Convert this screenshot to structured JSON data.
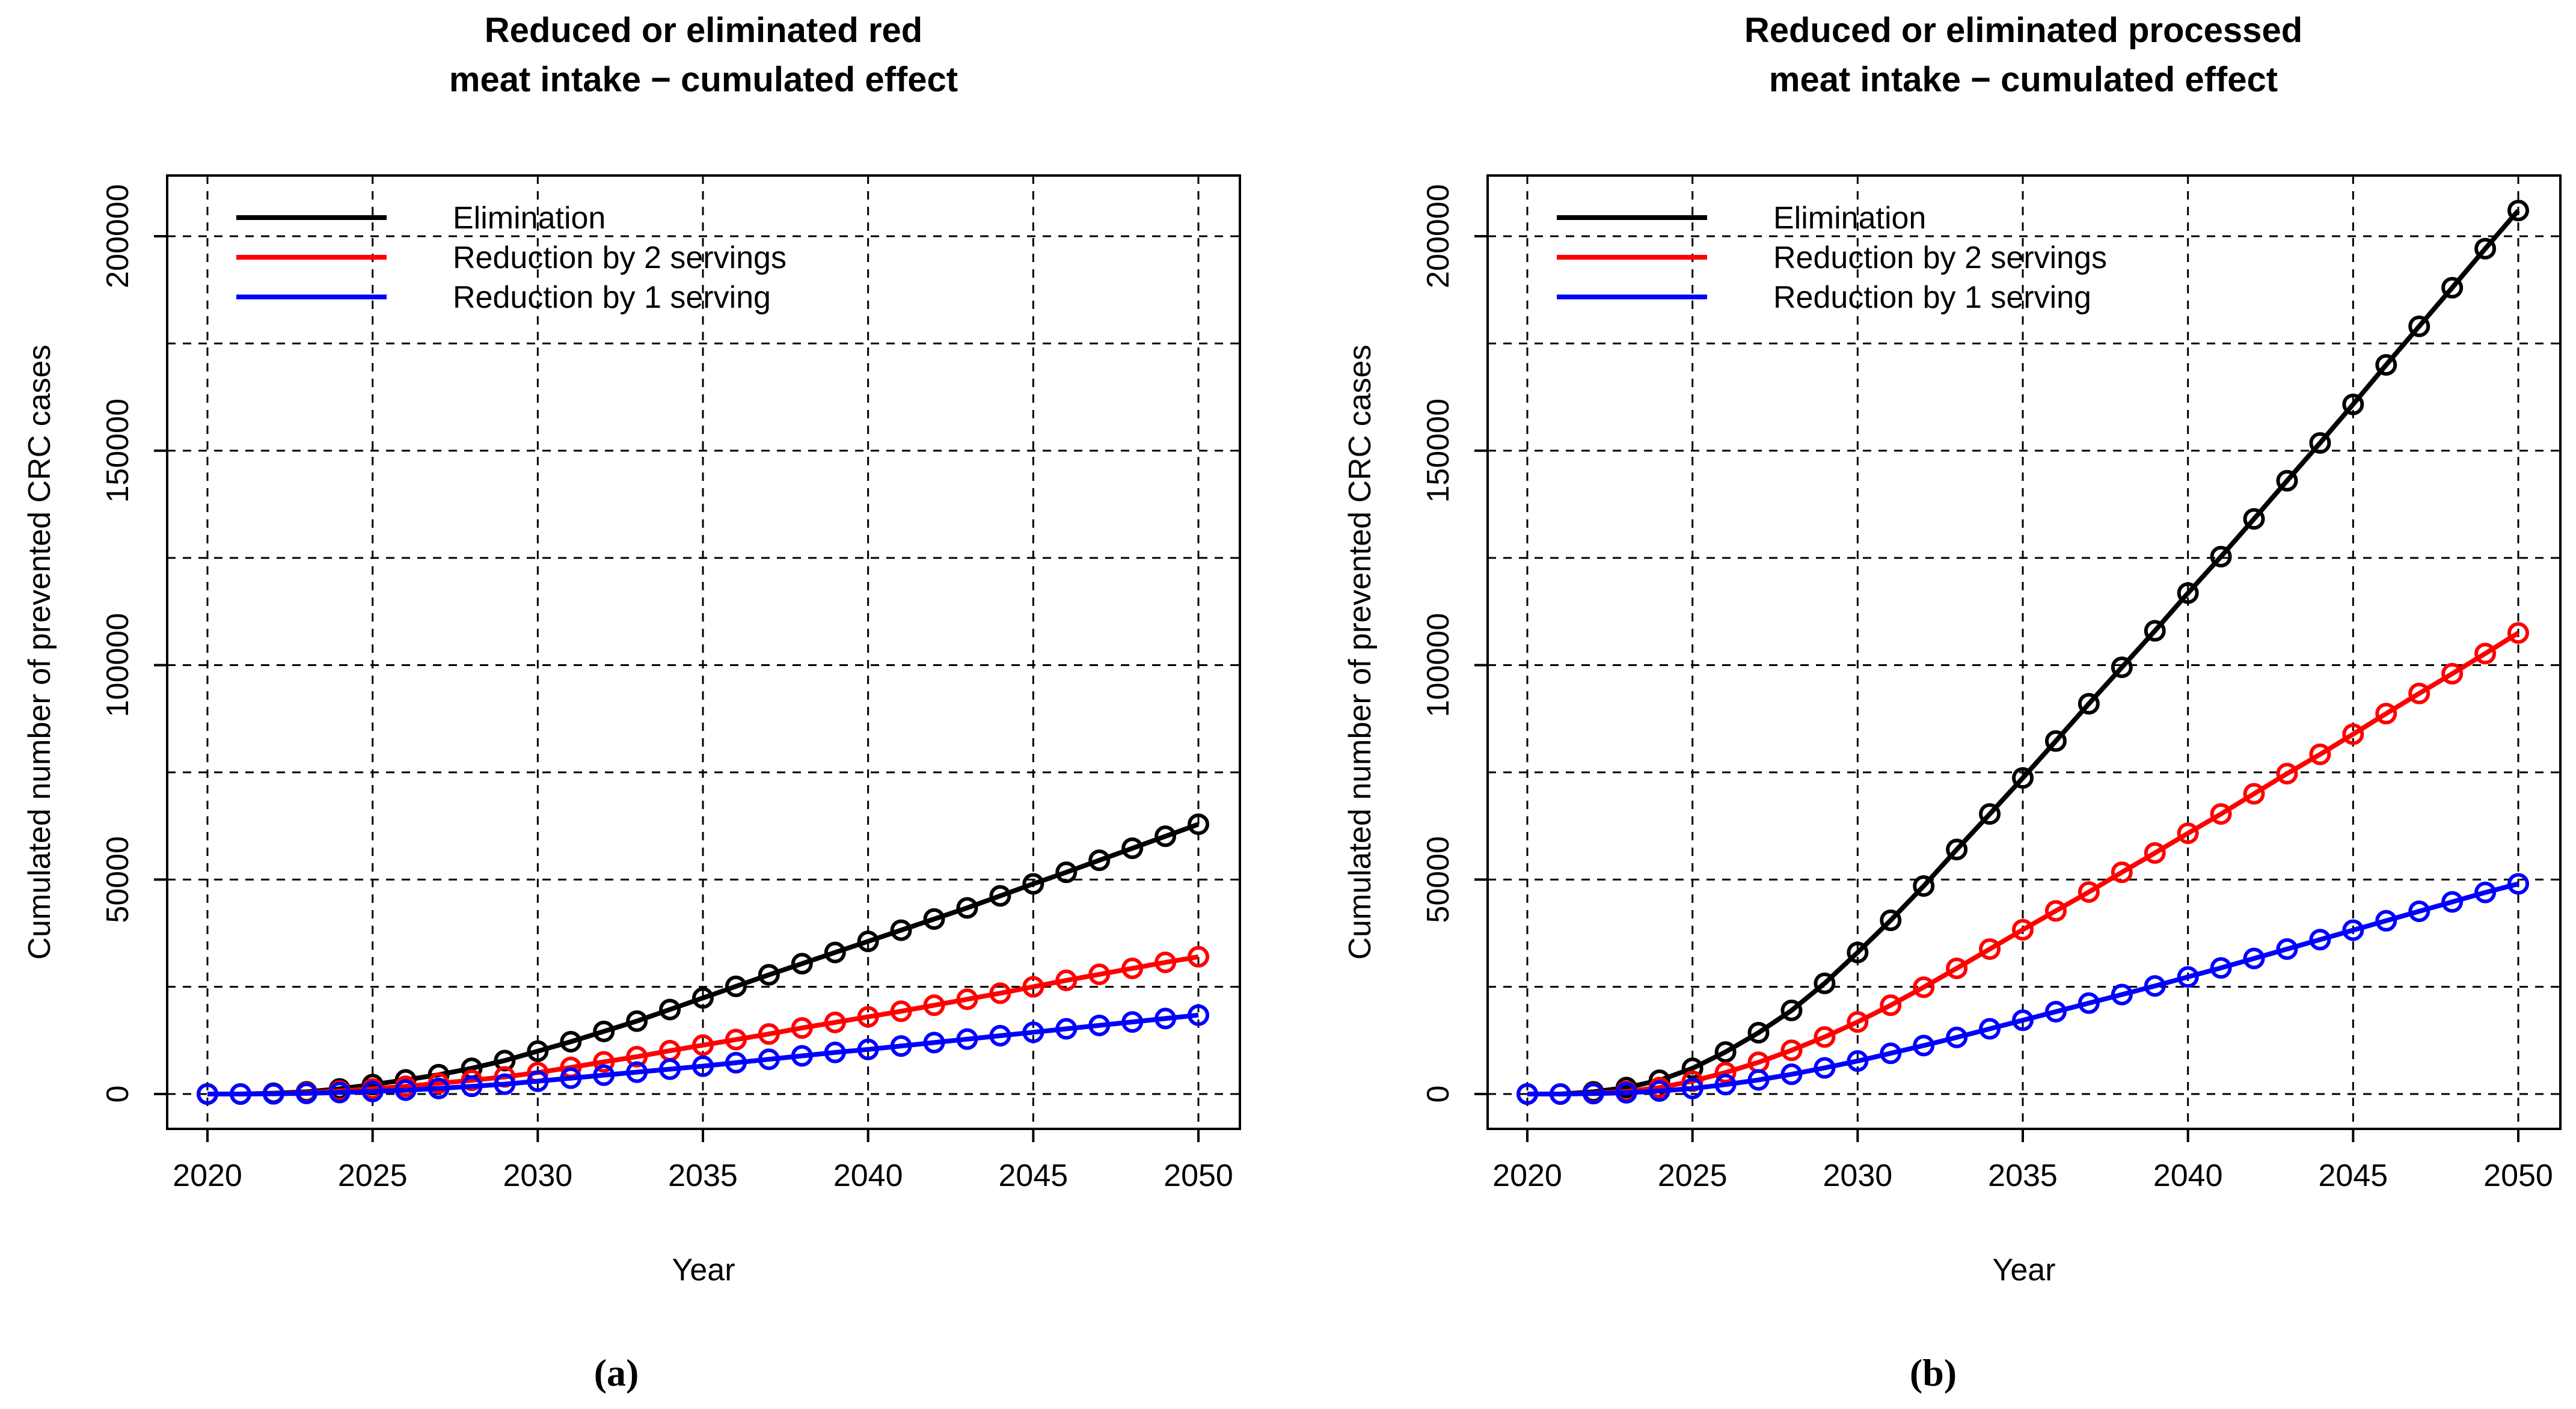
{
  "chart_data": [
    {
      "type": "line",
      "panel_label": "(a)",
      "title_lines": [
        "Reduced or eliminated red",
        "meat intake − cumulated effect"
      ],
      "xlabel": "Year",
      "ylabel": "Cumulated number of prevented CRC cases",
      "xlim": [
        2020,
        2050
      ],
      "ylim": [
        0,
        200000
      ],
      "xticks": [
        2020,
        2025,
        2030,
        2035,
        2040,
        2045,
        2050
      ],
      "yticks": [
        0,
        50000,
        100000,
        150000,
        200000
      ],
      "grid": true,
      "legend_position": "top-left",
      "x": [
        2020,
        2021,
        2022,
        2023,
        2024,
        2025,
        2026,
        2027,
        2028,
        2029,
        2030,
        2031,
        2032,
        2033,
        2034,
        2035,
        2036,
        2037,
        2038,
        2039,
        2040,
        2041,
        2042,
        2043,
        2044,
        2045,
        2046,
        2047,
        2048,
        2049,
        2050
      ],
      "series": [
        {
          "name": "Elimination",
          "color": "#000000",
          "values": [
            0,
            0,
            200,
            500,
            1200,
            2200,
            3300,
            4500,
            6000,
            7800,
            10000,
            12200,
            14600,
            17000,
            19700,
            22400,
            25100,
            27800,
            30400,
            33000,
            35600,
            38200,
            40800,
            43400,
            46200,
            49000,
            51700,
            54500,
            57300,
            60100,
            62900
          ]
        },
        {
          "name": "Reduction by 2 servings",
          "color": "#ff0000",
          "values": [
            0,
            0,
            100,
            300,
            700,
            1200,
            1800,
            2500,
            3200,
            4000,
            5000,
            6200,
            7500,
            8700,
            10100,
            11400,
            12700,
            14000,
            15400,
            16700,
            18000,
            19300,
            20700,
            22100,
            23500,
            25000,
            26500,
            27900,
            29300,
            30700,
            32000
          ]
        },
        {
          "name": "Reduction by 1 serving",
          "color": "#0000ff",
          "values": [
            0,
            0,
            50,
            150,
            350,
            600,
            900,
            1300,
            1800,
            2300,
            3000,
            3700,
            4400,
            5100,
            5800,
            6500,
            7300,
            8100,
            8900,
            9700,
            10400,
            11200,
            12000,
            12800,
            13600,
            14400,
            15200,
            16000,
            16800,
            17600,
            18400
          ]
        }
      ]
    },
    {
      "type": "line",
      "panel_label": "(b)",
      "title_lines": [
        "Reduced or eliminated processed",
        "meat intake − cumulated effect"
      ],
      "xlabel": "Year",
      "ylabel": "Cumulated number of prevented CRC cases",
      "xlim": [
        2020,
        2050
      ],
      "ylim": [
        0,
        200000
      ],
      "xticks": [
        2020,
        2025,
        2030,
        2035,
        2040,
        2045,
        2050
      ],
      "yticks": [
        0,
        50000,
        100000,
        150000,
        200000
      ],
      "grid": true,
      "legend_position": "top-left",
      "x": [
        2020,
        2021,
        2022,
        2023,
        2024,
        2025,
        2026,
        2027,
        2028,
        2029,
        2030,
        2031,
        2032,
        2033,
        2034,
        2035,
        2036,
        2037,
        2038,
        2039,
        2040,
        2041,
        2042,
        2043,
        2044,
        2045,
        2046,
        2047,
        2048,
        2049,
        2050
      ],
      "series": [
        {
          "name": "Elimination",
          "color": "#000000",
          "values": [
            0,
            0,
            500,
            1500,
            3200,
            6000,
            9800,
            14300,
            19500,
            25800,
            33000,
            40500,
            48500,
            57000,
            65300,
            73700,
            82300,
            91000,
            99500,
            108000,
            116800,
            125300,
            134100,
            143000,
            151800,
            160800,
            170000,
            179000,
            188000,
            197100,
            206000
          ]
        },
        {
          "name": "Reduction by 2 servings",
          "color": "#ff0000",
          "values": [
            0,
            0,
            200,
            600,
            1500,
            3000,
            5000,
            7400,
            10200,
            13300,
            16800,
            20700,
            24900,
            29300,
            33800,
            38300,
            42700,
            47100,
            51700,
            56200,
            60800,
            65300,
            70000,
            74700,
            79200,
            83900,
            88700,
            93400,
            98000,
            102700,
            107500
          ]
        },
        {
          "name": "Reduction by 1 serving",
          "color": "#0000ff",
          "values": [
            0,
            0,
            100,
            300,
            700,
            1300,
            2200,
            3300,
            4600,
            6100,
            7700,
            9500,
            11300,
            13200,
            15200,
            17200,
            19200,
            21200,
            23200,
            25200,
            27300,
            29400,
            31600,
            33800,
            36000,
            38200,
            40400,
            42600,
            44800,
            47000,
            49000
          ]
        }
      ]
    }
  ]
}
